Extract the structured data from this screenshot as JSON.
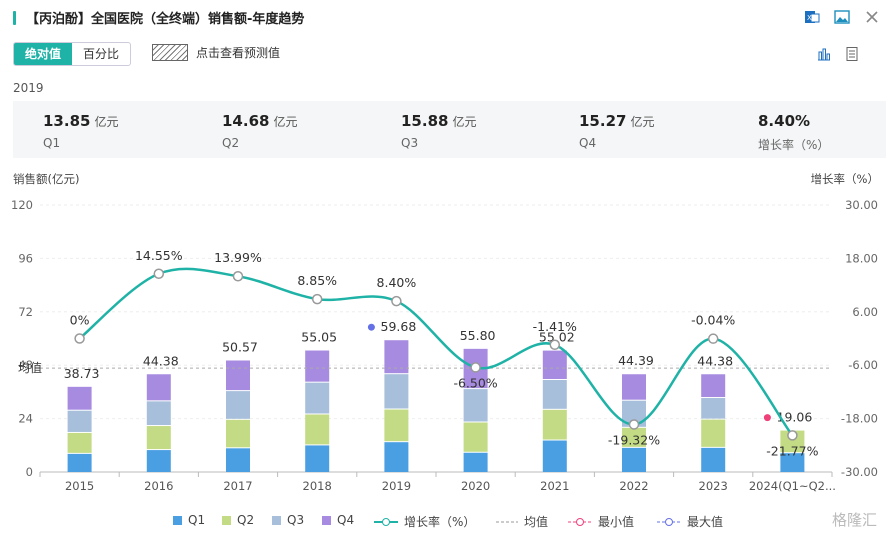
{
  "header": {
    "title": "【丙泊酚】全国医院（全终端）销售额-年度趋势",
    "icons": [
      "excel-icon",
      "image-icon",
      "close-icon"
    ]
  },
  "toggle": {
    "absolute": "绝对值",
    "percent": "百分比"
  },
  "predict_label": "点击查看预测值",
  "view_icons": [
    "bar-chart-icon",
    "table-icon"
  ],
  "year": "2019",
  "summary": [
    {
      "value": "13.85",
      "unit": "亿元",
      "label": "Q1"
    },
    {
      "value": "14.68",
      "unit": "亿元",
      "label": "Q2"
    },
    {
      "value": "15.88",
      "unit": "亿元",
      "label": "Q3"
    },
    {
      "value": "15.27",
      "unit": "亿元",
      "label": "Q4"
    },
    {
      "value": "8.40%",
      "unit": "",
      "label": "增长率（%）"
    }
  ],
  "colors": {
    "accent": "#1fb2a6",
    "q1": "#4a9fe3",
    "q2": "#c3db84",
    "q3": "#a7bfdb",
    "q4": "#a78be0",
    "min": "#f0407a",
    "max": "#6470e6"
  },
  "chart_data": {
    "type": "bar",
    "ylabel_left": "销售额(亿元)",
    "ylabel_right": "增长率（%）",
    "categories": [
      "2015",
      "2016",
      "2017",
      "2018",
      "2019",
      "2020",
      "2021",
      "2022",
      "2023",
      "2024(Q1~Q2..."
    ],
    "yticks_left": [
      "0",
      "24",
      "48",
      "72",
      "96",
      "120"
    ],
    "yticks_right": [
      "-30.00",
      "-18.00",
      "-6.00",
      "6.00",
      "18.00",
      "30.00"
    ],
    "ylim_left": [
      0,
      120
    ],
    "ylim_right": [
      -30,
      30
    ],
    "series": [
      {
        "name": "Q1",
        "values": [
          8.6,
          10.3,
          11.1,
          12.4,
          13.85,
          9.1,
          14.6,
          11.3,
          11.3,
          8.9
        ]
      },
      {
        "name": "Q2",
        "values": [
          9.4,
          10.8,
          12.8,
          13.9,
          14.68,
          13.6,
          13.8,
          9.0,
          12.7,
          10.16
        ]
      },
      {
        "name": "Q3",
        "values": [
          10.0,
          11.1,
          12.9,
          14.3,
          15.88,
          15.0,
          13.4,
          12.2,
          9.7,
          0
        ]
      },
      {
        "name": "Q4",
        "values": [
          10.73,
          12.18,
          13.77,
          14.45,
          15.27,
          18.1,
          13.22,
          11.89,
          10.68,
          0
        ]
      }
    ],
    "totals": [
      "38.73",
      "44.38",
      "50.57",
      "55.05",
      "59.68",
      "55.80",
      "55.02",
      "44.39",
      "44.38",
      "19.06"
    ],
    "growth": {
      "name": "增长率（%）",
      "values": [
        0,
        14.55,
        13.99,
        8.85,
        8.4,
        -6.5,
        -1.41,
        -19.32,
        -0.04,
        -21.77
      ],
      "labels": [
        "0%",
        "14.55%",
        "13.99%",
        "8.85%",
        "8.40%",
        "-6.50%",
        "-1.41%",
        "-19.32%",
        "-0.04%",
        "-21.77%"
      ]
    },
    "mean": {
      "name": "均值",
      "value": 46.7
    },
    "max_index": 4,
    "min_index": 9,
    "legend": [
      "Q1",
      "Q2",
      "Q3",
      "Q4",
      "增长率（%）",
      "均值",
      "最小值",
      "最大值"
    ]
  },
  "watermark": "格隆汇"
}
